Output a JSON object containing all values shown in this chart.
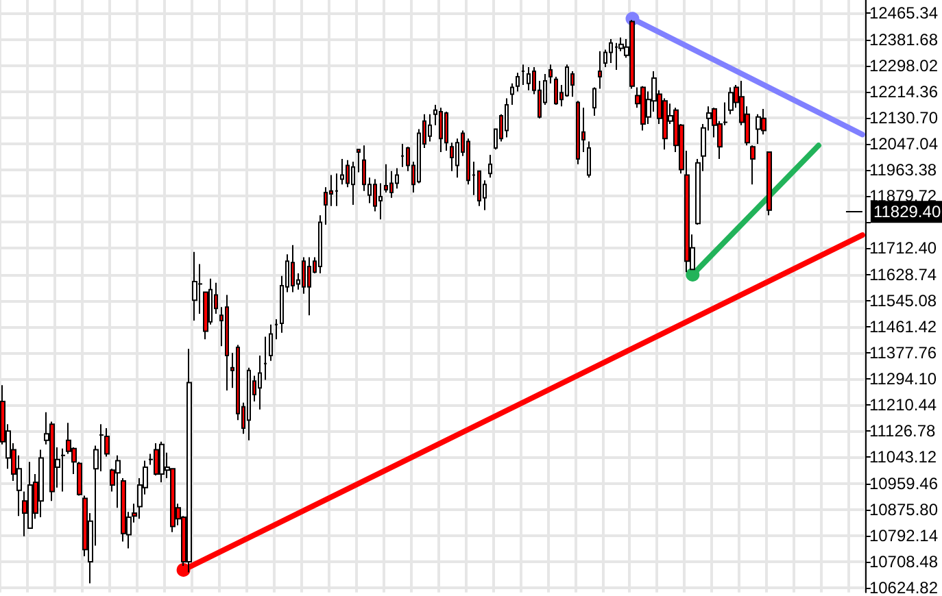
{
  "chart_data": {
    "type": "candlestick",
    "categories": [
      null,
      null,
      null,
      null,
      null,
      null,
      null,
      null,
      null,
      null,
      null,
      null,
      null,
      null,
      null,
      null,
      null,
      null,
      null,
      null,
      null,
      null,
      null,
      null,
      null,
      null,
      null,
      null,
      null,
      null,
      null,
      null,
      null,
      null,
      null,
      null,
      null,
      null,
      null,
      null,
      null,
      null,
      null,
      null,
      null,
      null,
      null,
      null,
      null,
      null,
      null,
      null,
      null,
      null,
      null,
      null,
      null,
      null,
      null,
      null,
      null,
      null,
      null,
      null,
      null,
      null,
      null,
      null,
      null,
      null,
      null,
      null,
      null,
      null,
      null,
      null,
      null,
      null,
      null,
      null,
      null,
      null,
      null,
      null,
      null,
      null,
      null,
      null,
      null,
      null,
      null,
      null,
      null,
      null,
      null,
      null,
      null,
      null,
      null,
      null,
      null,
      null,
      null,
      null,
      null,
      null,
      null,
      null,
      null,
      null,
      null,
      null,
      null,
      null,
      null,
      null,
      null,
      null,
      null,
      null,
      null,
      null,
      null,
      null,
      null,
      null,
      null,
      null,
      null,
      null,
      null,
      null,
      null,
      null,
      null,
      null,
      null,
      null,
      null,
      null,
      null,
      null,
      null,
      null,
      null,
      null,
      null,
      null,
      null,
      null,
      null,
      null,
      null,
      null,
      null,
      null,
      null,
      null
    ],
    "series": [
      {
        "ohlc": [
          [
            11222,
            11274,
            11084,
            11093
          ],
          [
            11041,
            11149,
            11006,
            11127
          ],
          [
            11067,
            11088,
            10967,
            10989
          ],
          [
            10937,
            11049,
            10855,
            11006
          ],
          [
            10903,
            10933,
            10790,
            10864
          ],
          [
            10816,
            11028,
            10816,
            10954
          ],
          [
            10963,
            10989,
            10846,
            10864
          ],
          [
            10903,
            11067,
            10851,
            11041
          ],
          [
            11097,
            11187,
            11084,
            11118
          ],
          [
            11149,
            11157,
            10903,
            10933
          ],
          [
            11011,
            11075,
            10946,
            11036
          ],
          [
            11049,
            11071,
            10933,
            11049
          ],
          [
            11097,
            11153,
            11054,
            11062
          ],
          [
            11071,
            11075,
            10989,
            11028
          ],
          [
            11023,
            11028,
            10920,
            10924
          ],
          [
            10911,
            10920,
            10726,
            10747
          ],
          [
            10708,
            10864,
            10639,
            10838
          ],
          [
            11006,
            11080,
            10760,
            11067
          ],
          [
            11114,
            11149,
            10998,
            11114
          ],
          [
            11110,
            11136,
            11045,
            11054
          ],
          [
            11002,
            11006,
            10933,
            10954
          ],
          [
            10993,
            11049,
            10881,
            11032
          ],
          [
            10967,
            10976,
            10773,
            10799
          ],
          [
            10795,
            10868,
            10751,
            10851
          ],
          [
            10864,
            10894,
            10834,
            10855
          ],
          [
            10885,
            10976,
            10846,
            10954
          ],
          [
            10946,
            11032,
            10924,
            11011
          ],
          [
            11036,
            11054,
            11019,
            11036
          ],
          [
            11067,
            11088,
            10985,
            10989
          ],
          [
            10989,
            11093,
            10963,
            11084
          ],
          [
            11002,
            11058,
            10976,
            11011
          ],
          [
            11006,
            11006,
            10803,
            10821
          ],
          [
            10881,
            10894,
            10825,
            10846
          ],
          [
            10851,
            10855,
            10695,
            10708
          ],
          [
            10708,
            11390,
            10674,
            11282
          ],
          [
            11546,
            11701,
            11481,
            11606
          ],
          [
            11598,
            11662,
            11503,
            11598
          ],
          [
            11572,
            11572,
            11421,
            11447
          ],
          [
            11477,
            11615,
            11468,
            11580
          ],
          [
            11563,
            11602,
            11503,
            11520
          ],
          [
            11498,
            11524,
            11399,
            11481
          ],
          [
            11524,
            11563,
            11257,
            11369
          ],
          [
            11330,
            11377,
            11265,
            11321
          ],
          [
            11395,
            11403,
            11162,
            11183
          ],
          [
            11205,
            11218,
            11118,
            11136
          ],
          [
            11162,
            11330,
            11097,
            11321
          ],
          [
            11287,
            11304,
            11222,
            11244
          ],
          [
            11265,
            11369,
            11196,
            11313
          ],
          [
            11343,
            11429,
            11291,
            11343
          ],
          [
            11369,
            11468,
            11352,
            11438
          ],
          [
            11468,
            11485,
            11421,
            11468
          ],
          [
            11472,
            11624,
            11442,
            11593
          ],
          [
            11589,
            11693,
            11572,
            11671
          ],
          [
            11667,
            11723,
            11572,
            11593
          ],
          [
            11598,
            11632,
            11580,
            11611
          ],
          [
            11671,
            11684,
            11567,
            11589
          ],
          [
            11654,
            11684,
            11498,
            11589
          ],
          [
            11671,
            11684,
            11632,
            11636
          ],
          [
            11654,
            11818,
            11632,
            11796
          ],
          [
            11891,
            11908,
            11788,
            11852
          ],
          [
            11896,
            11947,
            11848,
            11887
          ],
          [
            11896,
            11952,
            11848,
            11896
          ],
          [
            11934,
            11999,
            11917,
            11947
          ],
          [
            11978,
            11995,
            11908,
            11921
          ],
          [
            11917,
            11990,
            11852,
            11973
          ],
          [
            12029,
            12029,
            11956,
            12021
          ],
          [
            11995,
            12042,
            11896,
            11917
          ],
          [
            11883,
            11939,
            11857,
            11917
          ],
          [
            11917,
            11934,
            11831,
            11848
          ],
          [
            11865,
            11921,
            11805,
            11878
          ],
          [
            11913,
            11982,
            11891,
            11900
          ],
          [
            11921,
            11960,
            11874,
            11891
          ],
          [
            11921,
            11969,
            11904,
            11947
          ],
          [
            12008,
            12047,
            11973,
            12008
          ],
          [
            12034,
            12038,
            11960,
            11978
          ],
          [
            11978,
            11990,
            11891,
            11917
          ],
          [
            11926,
            12094,
            11921,
            12081
          ],
          [
            12120,
            12142,
            12034,
            12047
          ],
          [
            12072,
            12142,
            12055,
            12107
          ],
          [
            12142,
            12172,
            12107,
            12155
          ],
          [
            12150,
            12163,
            12021,
            12064
          ],
          [
            12146,
            12150,
            12025,
            12051
          ],
          [
            12038,
            12051,
            11960,
            12003
          ],
          [
            11978,
            12064,
            11939,
            12051
          ],
          [
            12081,
            12090,
            12008,
            12021
          ],
          [
            12055,
            12064,
            11917,
            11930
          ],
          [
            11947,
            11990,
            11883,
            11947
          ],
          [
            11960,
            11960,
            11848,
            11865
          ],
          [
            11874,
            11930,
            11835,
            11917
          ],
          [
            11952,
            12012,
            11939,
            11982
          ],
          [
            12034,
            12094,
            12029,
            12094
          ],
          [
            12137,
            12142,
            12055,
            12064
          ],
          [
            12090,
            12193,
            12068,
            12172
          ],
          [
            12206,
            12241,
            12172,
            12228
          ],
          [
            12232,
            12275,
            12215,
            12262
          ],
          [
            12280,
            12301,
            12236,
            12280
          ],
          [
            12241,
            12293,
            12219,
            12271
          ],
          [
            12280,
            12293,
            12206,
            12219
          ],
          [
            12219,
            12249,
            12129,
            12133
          ],
          [
            12180,
            12271,
            12172,
            12249
          ],
          [
            12284,
            12301,
            12241,
            12262
          ],
          [
            12254,
            12262,
            12172,
            12176
          ],
          [
            12211,
            12236,
            12167,
            12189
          ],
          [
            12202,
            12301,
            12198,
            12293
          ],
          [
            12271,
            12280,
            12198,
            12236
          ],
          [
            12180,
            12185,
            11982,
            11999
          ],
          [
            12085,
            12163,
            12021,
            12060
          ],
          [
            11947,
            12055,
            11939,
            12034
          ],
          [
            12163,
            12228,
            12137,
            12224
          ],
          [
            12280,
            12344,
            12224,
            12262
          ],
          [
            12306,
            12349,
            12293,
            12340
          ],
          [
            12340,
            12383,
            12306,
            12370
          ],
          [
            12357,
            12370,
            12284,
            12357
          ],
          [
            12353,
            12388,
            12344,
            12366
          ],
          [
            12331,
            12383,
            12323,
            12357
          ],
          [
            12439,
            12444,
            12224,
            12232
          ],
          [
            12202,
            12228,
            12163,
            12176
          ],
          [
            12228,
            12232,
            12090,
            12111
          ],
          [
            12133,
            12215,
            12111,
            12189
          ],
          [
            12185,
            12280,
            12150,
            12258
          ],
          [
            12206,
            12219,
            12111,
            12129
          ],
          [
            12185,
            12193,
            12029,
            12064
          ],
          [
            12120,
            12176,
            12111,
            12137
          ],
          [
            12155,
            12163,
            12021,
            12042
          ],
          [
            12107,
            12111,
            11952,
            11965
          ],
          [
            11947,
            12025,
            11636,
            11671
          ],
          [
            11645,
            11757,
            11645,
            11714
          ],
          [
            11792,
            11999,
            11788,
            11986
          ],
          [
            12008,
            12111,
            11960,
            12098
          ],
          [
            12129,
            12167,
            12090,
            12146
          ],
          [
            12159,
            12163,
            12068,
            12107
          ],
          [
            12111,
            12120,
            11999,
            12038
          ],
          [
            12116,
            12180,
            12107,
            12116
          ],
          [
            12155,
            12228,
            12142,
            12211
          ],
          [
            12228,
            12236,
            12163,
            12180
          ],
          [
            12198,
            12249,
            12107,
            12116
          ],
          [
            12142,
            12167,
            12042,
            12051
          ],
          [
            12038,
            12042,
            11917,
            11999
          ],
          [
            12094,
            12142,
            12047,
            12133
          ],
          [
            12129,
            12159,
            12077,
            12090
          ],
          [
            12021,
            12021,
            11818,
            11835
          ],
          null,
          null,
          null,
          null,
          null,
          null,
          null,
          null,
          null,
          null,
          null,
          null,
          null,
          null,
          null,
          null,
          null
        ]
      },
      {
        "type": "line",
        "color": "#8080ff",
        "marker": "circle",
        "values": [
          null,
          null,
          null,
          null,
          null,
          null,
          null,
          null,
          null,
          null,
          null,
          null,
          null,
          null,
          null,
          null,
          null,
          null,
          null,
          null,
          null,
          null,
          null,
          null,
          null,
          null,
          null,
          null,
          null,
          null,
          null,
          null,
          null,
          null,
          null,
          null,
          null,
          null,
          null,
          null,
          null,
          null,
          null,
          null,
          null,
          null,
          null,
          null,
          null,
          null,
          null,
          null,
          null,
          null,
          null,
          null,
          null,
          null,
          null,
          null,
          null,
          null,
          null,
          null,
          null,
          null,
          null,
          null,
          null,
          null,
          null,
          null,
          null,
          null,
          null,
          null,
          null,
          null,
          null,
          null,
          null,
          null,
          null,
          null,
          null,
          null,
          null,
          null,
          null,
          null,
          null,
          null,
          null,
          null,
          null,
          null,
          null,
          null,
          null,
          null,
          null,
          null,
          null,
          null,
          null,
          null,
          null,
          null,
          null,
          null,
          null,
          null,
          null,
          null,
          null,
          12448,
          null,
          null,
          null,
          null,
          null,
          null,
          null,
          null,
          null,
          null,
          null,
          null,
          null,
          null,
          null,
          null,
          null,
          null,
          null,
          null,
          null,
          null,
          null,
          null,
          null,
          null,
          null,
          null,
          null,
          null,
          null,
          null,
          null,
          null,
          null,
          null,
          null,
          null,
          null,
          null,
          null,
          12077
        ]
      },
      {
        "type": "line",
        "color": "#22b35a",
        "marker": "circle",
        "values": [
          null,
          null,
          null,
          null,
          null,
          null,
          null,
          null,
          null,
          null,
          null,
          null,
          null,
          null,
          null,
          null,
          null,
          null,
          null,
          null,
          null,
          null,
          null,
          null,
          null,
          null,
          null,
          null,
          null,
          null,
          null,
          null,
          null,
          null,
          null,
          null,
          null,
          null,
          null,
          null,
          null,
          null,
          null,
          null,
          null,
          null,
          null,
          null,
          null,
          null,
          null,
          null,
          null,
          null,
          null,
          null,
          null,
          null,
          null,
          null,
          null,
          null,
          null,
          null,
          null,
          null,
          null,
          null,
          null,
          null,
          null,
          null,
          null,
          null,
          null,
          null,
          null,
          null,
          null,
          null,
          null,
          null,
          null,
          null,
          null,
          null,
          null,
          null,
          null,
          null,
          null,
          null,
          null,
          null,
          null,
          null,
          null,
          null,
          null,
          null,
          null,
          null,
          null,
          null,
          null,
          null,
          null,
          null,
          null,
          null,
          null,
          null,
          null,
          null,
          null,
          null,
          null,
          null,
          null,
          null,
          null,
          null,
          null,
          null,
          null,
          null,
          11628,
          null,
          null,
          null,
          null,
          null,
          null,
          null,
          null,
          null,
          null,
          null,
          null,
          null,
          null,
          null,
          null,
          null,
          null,
          null,
          null,
          null,
          null,
          12042,
          null,
          null,
          null,
          null,
          null,
          null,
          null,
          null
        ]
      },
      {
        "type": "line",
        "color": "#ff0000",
        "marker": "circle",
        "values": [
          null,
          null,
          null,
          null,
          null,
          null,
          null,
          null,
          null,
          null,
          null,
          null,
          null,
          null,
          null,
          null,
          null,
          null,
          null,
          null,
          null,
          null,
          null,
          null,
          null,
          null,
          null,
          null,
          null,
          null,
          null,
          null,
          null,
          10682,
          null,
          null,
          null,
          null,
          null,
          null,
          null,
          null,
          null,
          null,
          null,
          null,
          null,
          null,
          null,
          null,
          null,
          null,
          null,
          null,
          null,
          null,
          null,
          null,
          null,
          null,
          null,
          null,
          null,
          null,
          null,
          null,
          null,
          null,
          null,
          null,
          null,
          null,
          null,
          null,
          null,
          null,
          null,
          null,
          null,
          null,
          null,
          null,
          null,
          null,
          null,
          null,
          null,
          null,
          null,
          null,
          null,
          null,
          null,
          null,
          null,
          null,
          null,
          null,
          null,
          null,
          null,
          null,
          null,
          null,
          null,
          null,
          null,
          null,
          null,
          null,
          null,
          null,
          null,
          null,
          null,
          null,
          null,
          null,
          null,
          null,
          null,
          null,
          null,
          null,
          null,
          null,
          null,
          null,
          null,
          null,
          null,
          null,
          null,
          null,
          null,
          null,
          null,
          null,
          null,
          null,
          null,
          null,
          null,
          null,
          null,
          null,
          null,
          null,
          null,
          null,
          null,
          null,
          null,
          null,
          null,
          null,
          null,
          11755
        ]
      }
    ],
    "ylim": [
      10610,
      12508
    ],
    "yticks": [
      12465.34,
      12381.68,
      12298.02,
      12214.36,
      {
        "value": 12130.7,
        "label": "12130.70"
      },
      12047.04,
      11963.38,
      11879.72,
      {
        "value": 11796.06,
        "label": null
      },
      {
        "value": 11712.4,
        "label": "11712.40"
      },
      11628.74,
      11545.08,
      11461.42,
      11377.76,
      {
        "value": 11294.1,
        "label": "11294.10"
      },
      11210.44,
      11126.78,
      11043.12,
      10959.46,
      {
        "value": 10875.8,
        "label": "10875.80"
      },
      10792.14,
      10708.48,
      10624.82
    ],
    "ref_lines": [
      {
        "axis": "y",
        "value": 11829.4,
        "label": "11829.40"
      }
    ],
    "grid": true,
    "tick_labels": "y"
  }
}
